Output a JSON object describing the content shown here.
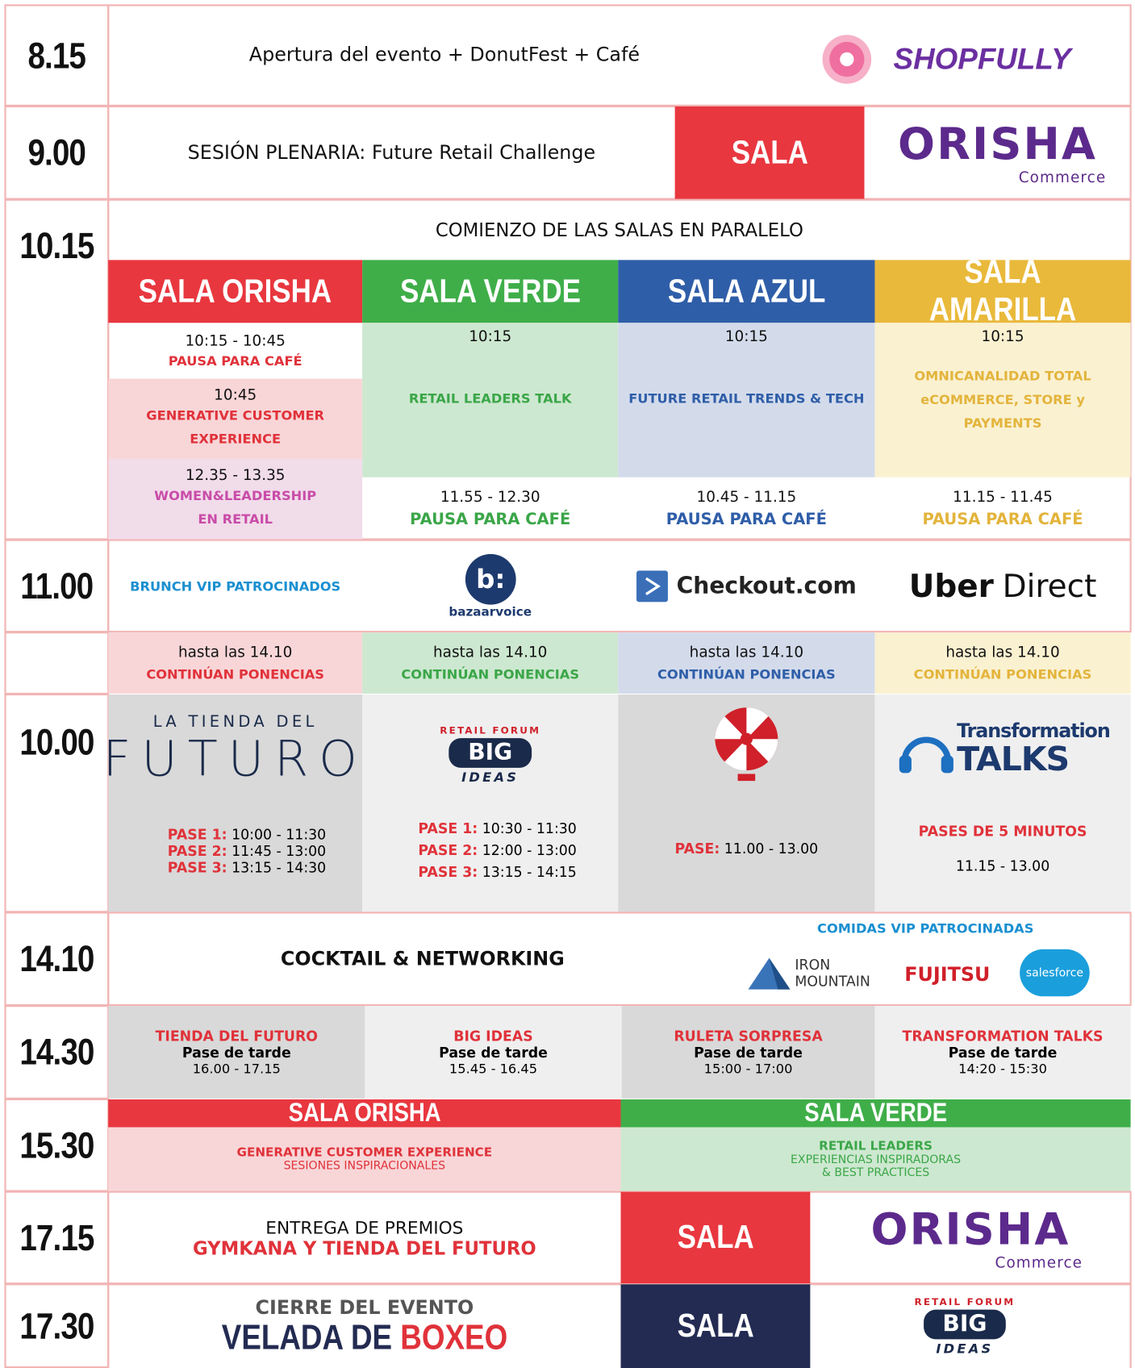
{
  "r1": {
    "time": "8.15",
    "text": "Apertura del evento + DonutFest + Café",
    "logo": "SHOPFULLY"
  },
  "r2": {
    "time": "9.00",
    "text": "SESIÓN PLENARIA: Future Retail Challenge",
    "sala": "SALA",
    "logo": "ORISHA",
    "logo_sub": "Commerce"
  },
  "r3": {
    "time": "10.15",
    "title": "COMIENZO DE LAS SALAS EN PARALELO",
    "rooms": [
      "SALA ORISHA",
      "SALA VERDE",
      "SALA AZUL",
      "SALA AMARILLA"
    ],
    "orisha": [
      {
        "time": "10:15 - 10:45",
        "title": "PAUSA PARA CAFÉ"
      },
      {
        "time": "10:45",
        "title": "GENERATIVE CUSTOMER EXPERIENCE"
      },
      {
        "time": "12.35 - 13.35",
        "title": "WOMEN&LEADERSHIP EN RETAIL"
      }
    ],
    "verde": [
      {
        "time": "10:15",
        "title": "RETAIL LEADERS TALK"
      },
      {
        "time": "11.55 - 12.30",
        "title": "PAUSA PARA CAFÉ"
      }
    ],
    "azul": [
      {
        "time": "10:15",
        "title": "FUTURE RETAIL TRENDS & TECH"
      },
      {
        "time": "10.45 - 11.15",
        "title": "PAUSA PARA CAFÉ"
      }
    ],
    "amarilla": [
      {
        "time": "10:15",
        "title": "OMNICANALIDAD TOTAL eCOMMERCE, STORE y PAYMENTS"
      },
      {
        "time": "11.15 - 11.45",
        "title": "PAUSA PARA CAFÉ"
      }
    ]
  },
  "r4": {
    "time": "11.00",
    "text": "BRUNCH VIP PATROCINADOS",
    "logos": [
      "bazaarvoice",
      "Checkout.com",
      "Uber",
      "Direct"
    ]
  },
  "r5": {
    "cells": [
      {
        "time": "hasta las 14.10",
        "title": "CONTINÚAN PONENCIAS"
      },
      {
        "time": "hasta las 14.10",
        "title": "CONTINÚAN PONENCIAS"
      },
      {
        "time": "hasta las 14.10",
        "title": "CONTINÚAN PONENCIAS"
      },
      {
        "time": "hasta las 14.10",
        "title": "CONTINÚAN PONENCIAS"
      }
    ]
  },
  "r6": {
    "time": "10.00",
    "futuro": {
      "logo_top": "LA TIENDA DEL",
      "logo_main": "FUTURO",
      "passes": [
        {
          "label": "PASE 1:",
          "time": "10:00 - 11:30"
        },
        {
          "label": "PASE 2:",
          "time": "11:45 - 13:00"
        },
        {
          "label": "PASE 3:",
          "time": "13:15 - 14:30"
        }
      ]
    },
    "big": {
      "logo_top": "RETAIL FORUM",
      "logo_main": "BIG",
      "logo_sub": "IDEAS",
      "passes": [
        {
          "label": "PASE 1:",
          "time": "10:30 - 11:30"
        },
        {
          "label": "PASE 2:",
          "time": "12:00 - 13:00"
        },
        {
          "label": "PASE 3:",
          "time": "13:15 - 14:15"
        }
      ]
    },
    "ruleta": {
      "passes": [
        {
          "label": "PASE:",
          "time": "11.00 - 13.00"
        }
      ]
    },
    "talks": {
      "logo_top": "Transformation",
      "logo_main": "TALKS",
      "title": "PASES DE 5 MINUTOS",
      "time": "11.15 - 13.00"
    }
  },
  "r7": {
    "time": "14.10",
    "text": "COCKTAIL & NETWORKING",
    "sponsor_title": "COMIDAS VIP PATROCINADAS",
    "logos": [
      "IRON MOUNTAIN",
      "FUJITSU",
      "salesforce"
    ]
  },
  "r8": {
    "time": "14.30",
    "cells": [
      {
        "title": "TIENDA DEL FUTURO",
        "sub": "Pase de tarde",
        "time": "16.00 - 17.15"
      },
      {
        "title": "BIG IDEAS",
        "sub": "Pase de tarde",
        "time": "15.45 - 16.45"
      },
      {
        "title": "RULETA SORPRESA",
        "sub": "Pase de tarde",
        "time": "15:00 - 17:00"
      },
      {
        "title": "TRANSFORMATION TALKS",
        "sub": "Pase de tarde",
        "time": "14:20 - 15:30"
      }
    ]
  },
  "r9": {
    "time": "15.30",
    "orisha": {
      "room": "SALA ORISHA",
      "title": "GENERATIVE CUSTOMER EXPERIENCE",
      "sub": "SESIONES INSPIRACIONALES"
    },
    "verde": {
      "room": "SALA VERDE",
      "title": "RETAIL LEADERS",
      "sub": [
        "EXPERIENCIAS INSPIRADORAS",
        "& BEST PRACTICES"
      ]
    }
  },
  "r10": {
    "time": "17.15",
    "line1": "ENTREGA DE PREMIOS",
    "line2": "GYMKANA Y TIENDA DEL FUTURO",
    "sala": "SALA",
    "logo": "ORISHA",
    "logo_sub": "Commerce"
  },
  "r11": {
    "time": "17.30",
    "line1": "CIERRE DEL EVENTO",
    "line2a": "VELADA DE",
    "line2b": "BOXEO",
    "sala": "SALA",
    "logo_top": "RETAIL FORUM",
    "logo_main": "BIG",
    "logo_sub": "IDEAS"
  }
}
